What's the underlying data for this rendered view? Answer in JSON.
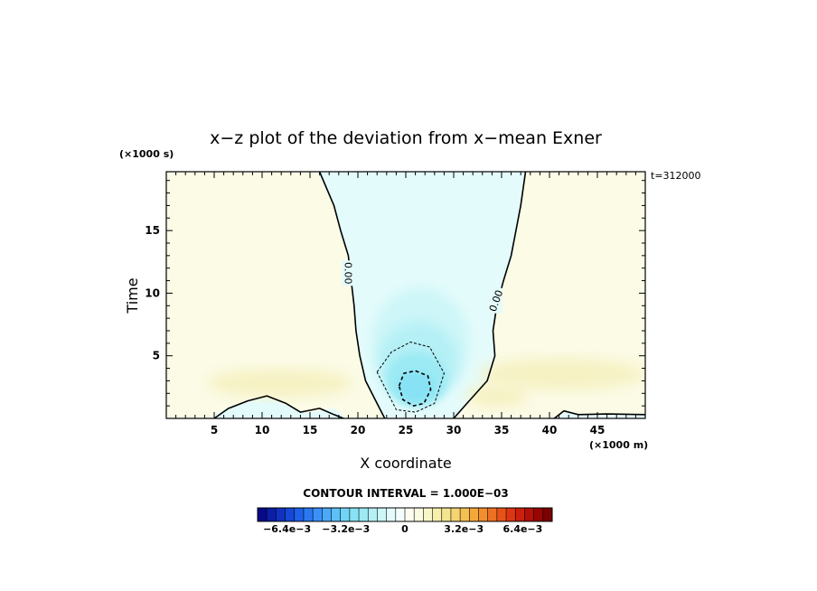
{
  "chart_data": {
    "type": "contour",
    "title": "x−z plot of the deviation from x−mean Exner",
    "xlabel": "X coordinate",
    "ylabel": "Time",
    "x_unit_label": "(×1000 m)",
    "y_unit_label": "(×1000 s)",
    "time_annotation": "t=312000",
    "xlim": [
      0,
      50
    ],
    "ylim": [
      0,
      19.7
    ],
    "x_ticks": [
      5,
      10,
      15,
      20,
      25,
      30,
      35,
      40,
      45
    ],
    "y_ticks": [
      5,
      10,
      15
    ],
    "contour_interval_text": "CONTOUR INTERVAL = 1.000E−03",
    "contour_labels": [
      {
        "text": "0.00",
        "x": 19,
        "y": 11.6
      },
      {
        "text": "0.00",
        "x": 34.4,
        "y": 9.4
      }
    ],
    "zero_contours": [
      [
        [
          16,
          19.7
        ],
        [
          17.5,
          17
        ],
        [
          18.2,
          15
        ],
        [
          19,
          13
        ],
        [
          19.3,
          11
        ],
        [
          19.6,
          9
        ],
        [
          19.8,
          7
        ],
        [
          20.2,
          5
        ],
        [
          20.8,
          3
        ],
        [
          21.8,
          1.5
        ],
        [
          22.8,
          0
        ]
      ],
      [
        [
          37.5,
          19.7
        ],
        [
          37,
          17
        ],
        [
          36.5,
          15
        ],
        [
          36,
          13
        ],
        [
          35.2,
          11
        ],
        [
          34.5,
          9
        ],
        [
          34.1,
          7
        ],
        [
          34.3,
          5
        ],
        [
          33.5,
          3
        ],
        [
          31.5,
          1.3
        ],
        [
          30,
          0
        ]
      ],
      [
        [
          5,
          0
        ],
        [
          6.5,
          0.8
        ],
        [
          8.5,
          1.4
        ],
        [
          10.5,
          1.8
        ],
        [
          12.5,
          1.2
        ],
        [
          14,
          0.5
        ],
        [
          16,
          0.8
        ],
        [
          17.5,
          0.3
        ],
        [
          18.5,
          0
        ]
      ],
      [
        [
          40.5,
          0
        ],
        [
          41.5,
          0.6
        ],
        [
          43,
          0.3
        ],
        [
          46,
          0.35
        ],
        [
          50,
          0.3
        ]
      ]
    ],
    "negative_contours": [
      {
        "level": -0.001,
        "points": [
          [
            22,
            3.7
          ],
          [
            23.5,
            5.3
          ],
          [
            25.5,
            6.1
          ],
          [
            27.5,
            5.7
          ],
          [
            29,
            3.6
          ],
          [
            28,
            1.2
          ],
          [
            26,
            0.5
          ],
          [
            24,
            0.7
          ],
          [
            22,
            3.7
          ]
        ]
      },
      {
        "level": -0.002,
        "points": [
          [
            24.3,
            2.6
          ],
          [
            24.8,
            3.6
          ],
          [
            26,
            3.8
          ],
          [
            27.3,
            3.4
          ],
          [
            27.6,
            2.3
          ],
          [
            26.9,
            1.2
          ],
          [
            25.8,
            1
          ],
          [
            24.7,
            1.5
          ],
          [
            24.3,
            2.6
          ]
        ]
      }
    ],
    "colorbar": {
      "vmin": -0.008,
      "vmax": 0.008,
      "interval": 0.0004,
      "tick_labels": [
        {
          "text": "−6.4e−3",
          "value": -0.0064
        },
        {
          "text": "−3.2e−3",
          "value": -0.0032
        },
        {
          "text": "0",
          "value": 0
        },
        {
          "text": "3.2e−3",
          "value": 0.0032
        },
        {
          "text": "6.4e−3",
          "value": 0.0064
        }
      ],
      "colors": [
        "#08088a",
        "#0c1ea5",
        "#1132c0",
        "#1648d6",
        "#1f60e8",
        "#2a78f2",
        "#3a90f6",
        "#4ca8f8",
        "#5ec0f8",
        "#70d4f6",
        "#86e2f4",
        "#9ceaf4",
        "#b4f0f6",
        "#cdf6f8",
        "#e4fbfb",
        "#f4fdfd",
        "#fdfdf0",
        "#fbfbe0",
        "#f8f6c8",
        "#f6eeaa",
        "#f4e48e",
        "#f4d470",
        "#f4c052",
        "#f4a83c",
        "#f28e2c",
        "#ee7020",
        "#e85218",
        "#dc3612",
        "#cc200c",
        "#b21008",
        "#980604",
        "#7c0202"
      ]
    }
  }
}
